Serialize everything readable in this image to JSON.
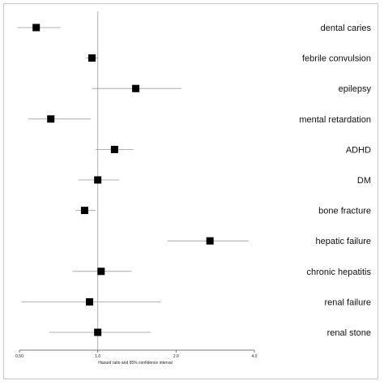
{
  "chart_data": {
    "type": "forest",
    "x_scale": "log",
    "xlim": [
      0.5,
      4.0
    ],
    "xticks": [
      {
        "value": 0.5,
        "label": "0.50"
      },
      {
        "value": 1.0,
        "label": "1.0"
      },
      {
        "value": 2.0,
        "label": "2.0"
      },
      {
        "value": 4.0,
        "label": "4.0"
      }
    ],
    "reference_line": 1.0,
    "xlabel": "Hazard ratio and 95% confidence interval",
    "grid": false,
    "rows": [
      {
        "label": "dental caries",
        "hr": 0.58,
        "lower": 0.49,
        "upper": 0.72
      },
      {
        "label": "febrile convulsion",
        "hr": 0.95,
        "lower": 0.9,
        "upper": 1.0
      },
      {
        "label": "epilepsy",
        "hr": 1.4,
        "lower": 0.95,
        "upper": 2.1
      },
      {
        "label": "mental retardation",
        "hr": 0.66,
        "lower": 0.54,
        "upper": 0.94
      },
      {
        "label": "ADHD",
        "hr": 1.16,
        "lower": 0.98,
        "upper": 1.37
      },
      {
        "label": "DM",
        "hr": 1.0,
        "lower": 0.84,
        "upper": 1.21
      },
      {
        "label": "bone fracture",
        "hr": 0.89,
        "lower": 0.82,
        "upper": 0.98
      },
      {
        "label": "hepatic failure",
        "hr": 2.7,
        "lower": 1.85,
        "upper": 3.8
      },
      {
        "label": "chronic hepatitis",
        "hr": 1.03,
        "lower": 0.8,
        "upper": 1.35
      },
      {
        "label": "renal failure",
        "hr": 0.93,
        "lower": 0.51,
        "upper": 1.75
      },
      {
        "label": "renal stone",
        "hr": 1.0,
        "lower": 0.65,
        "upper": 1.6
      }
    ]
  },
  "colors": {
    "marker": "#000000",
    "ci_line": "#9a9a9a",
    "reference_line": "#b0b0b0",
    "axis": "#555555",
    "frame": "#c8c8c8"
  }
}
